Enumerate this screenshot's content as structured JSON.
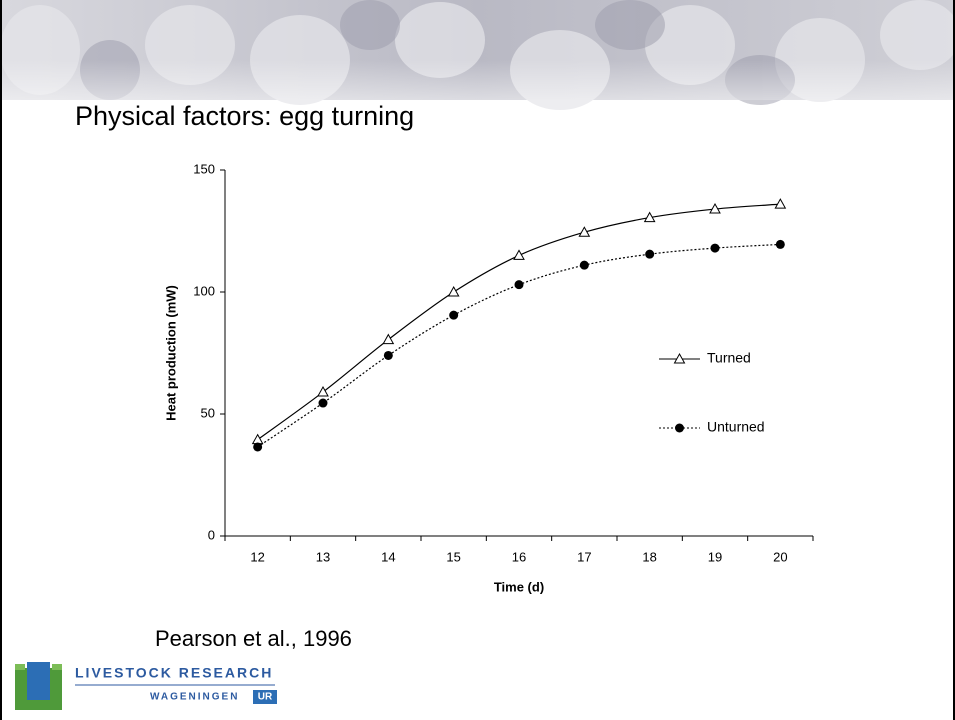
{
  "slide": {
    "title": "Physical factors: egg turning",
    "citation": "Pearson et al., 1996",
    "logo_top": "LIVESTOCK RESEARCH",
    "logo_bottom": "WAGENINGEN",
    "logo_badge": "UR"
  },
  "chart_data": {
    "type": "line",
    "xlabel": "Time (d)",
    "ylabel": "Heat production (mW)",
    "categories": [
      "12",
      "13",
      "14",
      "15",
      "16",
      "17",
      "18",
      "19",
      "20"
    ],
    "ylim": [
      0,
      150
    ],
    "yticks": [
      0,
      50,
      100,
      150
    ],
    "smooth": true,
    "series": [
      {
        "name": "Turned",
        "color": "#000000",
        "marker": "triangle",
        "line": "solid",
        "values": [
          39.5,
          59,
          80.5,
          100,
          115,
          124.5,
          130.5,
          134,
          136
        ]
      },
      {
        "name": "Unturned",
        "color": "#000000",
        "marker": "circle",
        "line": "dotted",
        "values": [
          36.5,
          54.5,
          74,
          90.5,
          103,
          111,
          115.5,
          118,
          119.5
        ]
      }
    ]
  }
}
